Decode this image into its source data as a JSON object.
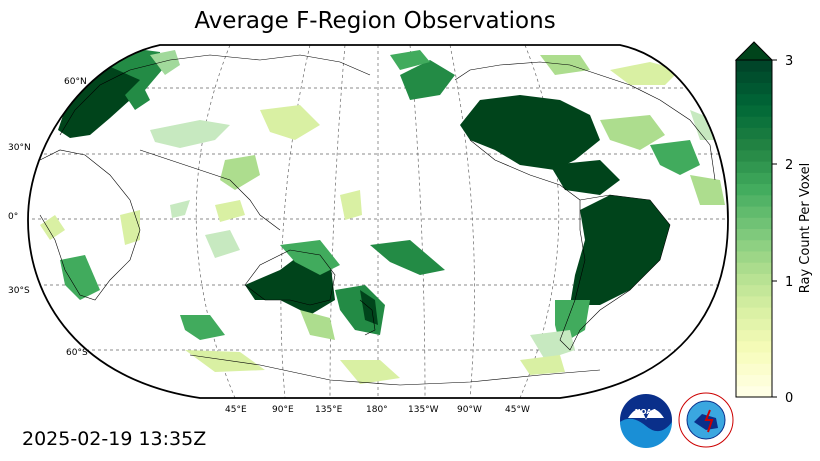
{
  "title": "Average F-Region Observations",
  "timestamp": "2025-02-19 13:35Z",
  "map": {
    "lat_labels": [
      "60°N",
      "30°N",
      "0°",
      "30°S",
      "60°S"
    ],
    "lon_labels": [
      "45°E",
      "90°E",
      "135°E",
      "180°",
      "135°W",
      "90°W",
      "45°W"
    ],
    "projection": "Robinson, Pacific-centered",
    "grid": true
  },
  "colorbar": {
    "label": "Ray Count Per Voxel",
    "ticks": [
      "0",
      "1",
      "2",
      "3"
    ],
    "range": [
      0,
      3
    ],
    "extend": "max",
    "colors": [
      "#ffffe5",
      "#f7fcb9",
      "#d9f0a3",
      "#addd8e",
      "#78c679",
      "#41ab5d",
      "#238443",
      "#006837",
      "#004529"
    ]
  },
  "logos": {
    "noaa": "NOAA",
    "nws": "NATIONAL WEATHER SERVICE"
  }
}
